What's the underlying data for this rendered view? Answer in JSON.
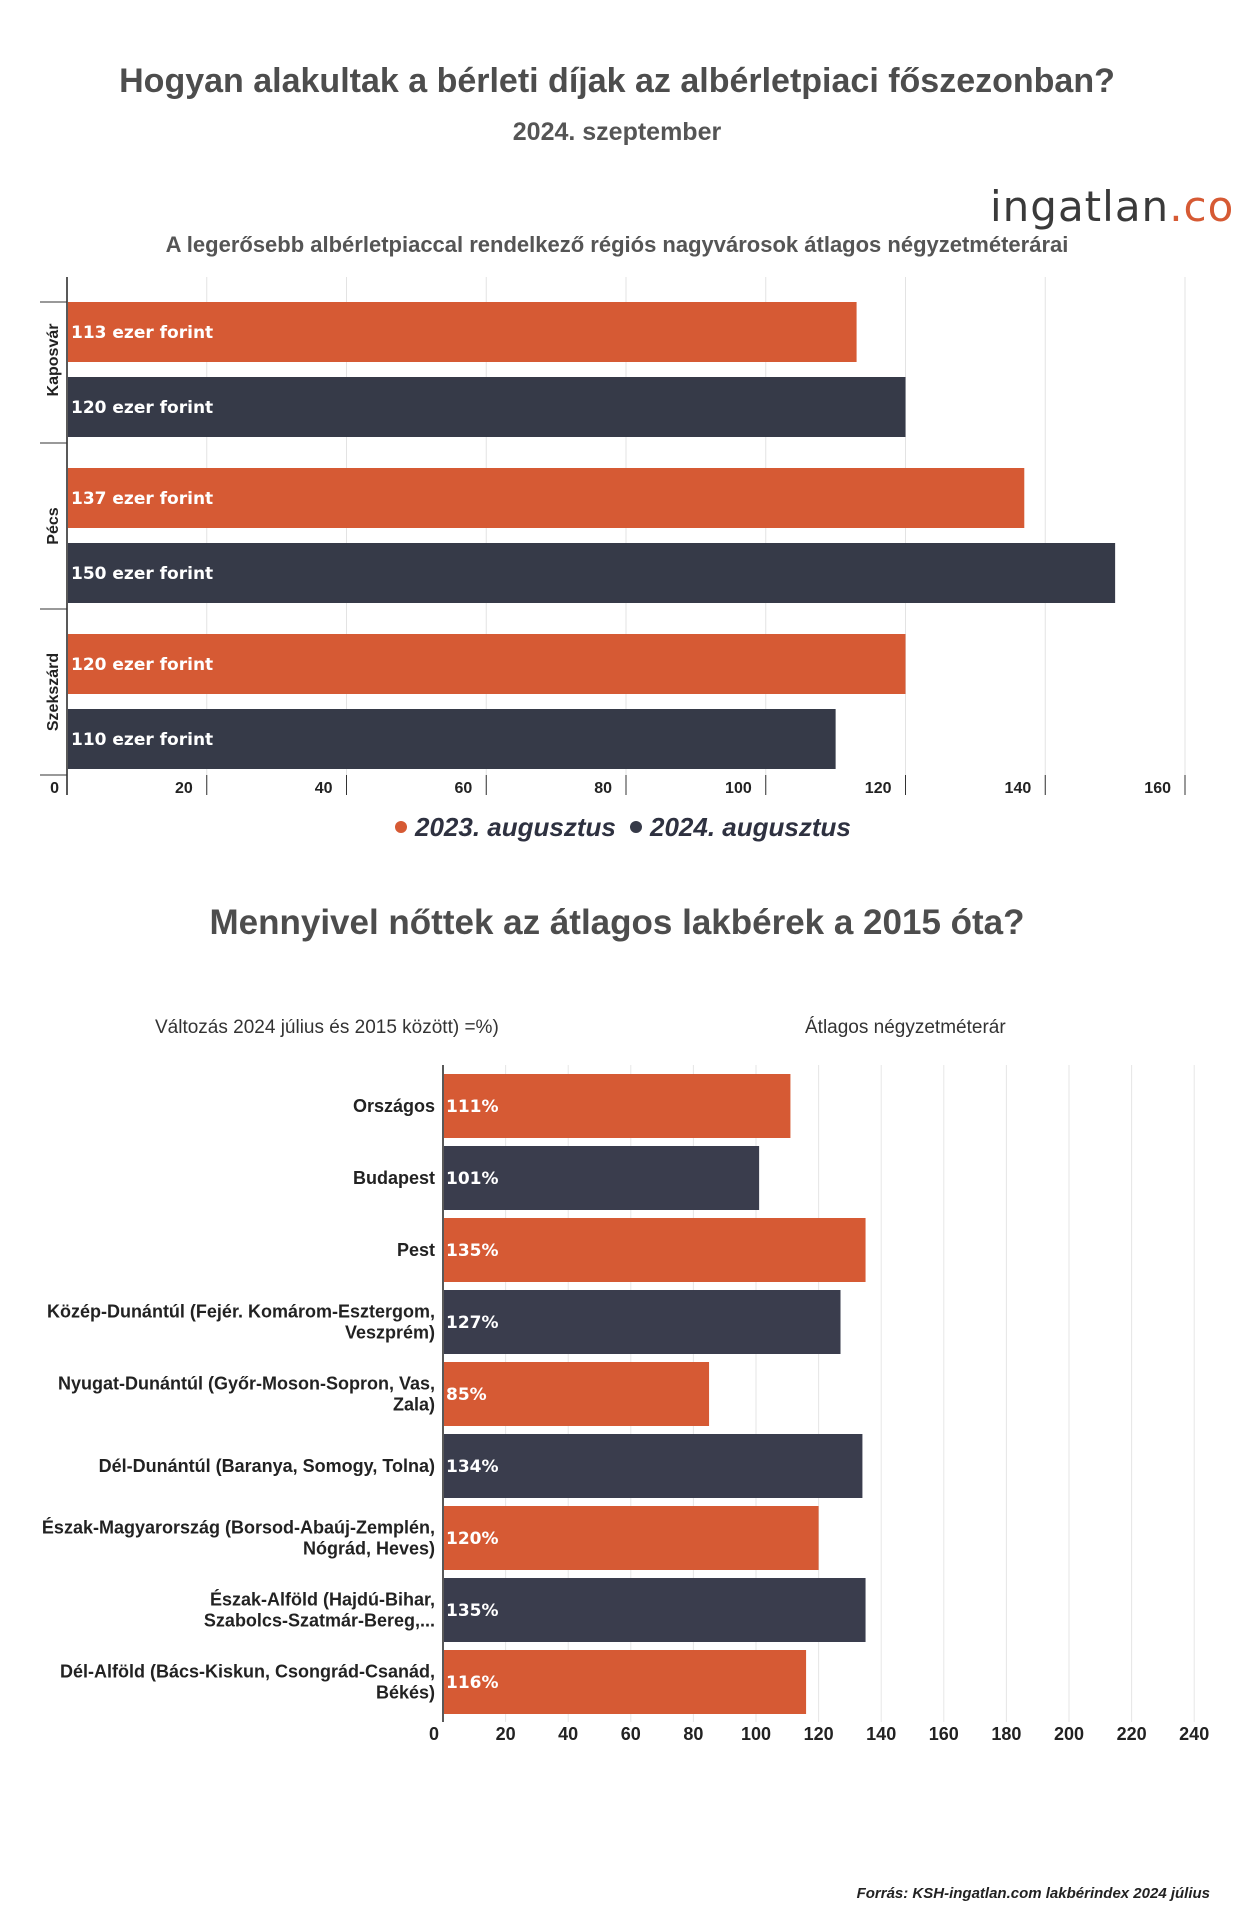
{
  "header": {
    "title": "Hogyan alakultak a bérleti díjak az albérletpiaci főszezonban?",
    "subtitle": "2024. szeptember",
    "logo_name": "ingatlan",
    "logo_tld": ".com"
  },
  "chart1_title": "A legerősebb albérletpiaccal rendelkező régiós nagyvárosok átlagos négyzetméterárai",
  "chart2_title": "Mennyivel nőttek az átlagos lakbérek a 2015 óta?",
  "chart2_left_header": "Változás 2024 július és 2015 között) =%)",
  "chart2_right_header": "Átlagos négyzetméterár",
  "footer": "Forrás: KSH-ingatlan.com lakbérindex 2024 július",
  "colors": {
    "orange": "#d65a34",
    "navy": "#363a48"
  },
  "chart_data": [
    {
      "type": "bar",
      "orientation": "horizontal",
      "title": "A legerősebb albérletpiaccal rendelkező régiós nagyvárosok átlagos négyzetméterárai",
      "categories": [
        "Kaposvár",
        "Pécs",
        "Szekszárd"
      ],
      "series": [
        {
          "name": "2023. augusztus",
          "color": "#d65a34",
          "values": [
            113,
            137,
            120
          ],
          "labels": [
            "113 ezer forint",
            "137 ezer forint",
            "120 ezer forint"
          ]
        },
        {
          "name": "2024. augusztus",
          "color": "#363a48",
          "values": [
            120,
            150,
            110
          ],
          "labels": [
            "120 ezer forint",
            "150 ezer forint",
            "110 ezer forint"
          ]
        }
      ],
      "xlim": [
        0,
        160
      ],
      "xticks": [
        "0",
        "20",
        "40",
        "60",
        "80",
        "100",
        "120",
        "140",
        "160"
      ],
      "grid": true,
      "legend_position": "bottom"
    },
    {
      "type": "bar",
      "orientation": "horizontal",
      "title": "Mennyivel nőttek az átlagos lakbérek a 2015 óta?",
      "categories": [
        [
          "Országos"
        ],
        [
          "Budapest"
        ],
        [
          "Pest"
        ],
        [
          "Közép-Dunántúl (Fejér. Komárom-Esztergom,",
          "Veszprém)"
        ],
        [
          "Nyugat-Dunántúl (Győr-Moson-Sopron, Vas,",
          "Zala)"
        ],
        [
          "Dél-Dunántúl (Baranya, Somogy, Tolna)"
        ],
        [
          "Észak-Magyarország (Borsod-Abaúj-Zemplén,",
          "Nógrád, Heves)"
        ],
        [
          "Észak-Alföld (Hajdú-Bihar,",
          "Szabolcs-Szatmár-Bereg,..."
        ],
        [
          "Dél-Alföld (Bács-Kiskun, Csongrád-Csanád,",
          "Békés)"
        ]
      ],
      "values": [
        111,
        101,
        135,
        127,
        85,
        134,
        120,
        135,
        116
      ],
      "labels": [
        "111%",
        "101%",
        "135%",
        "127%",
        "85%",
        "134%",
        "120%",
        "135%",
        "116%"
      ],
      "colors": [
        "#d65a34",
        "#3a3d4d",
        "#d65a34",
        "#3a3d4d",
        "#d65a34",
        "#3a3d4d",
        "#d65a34",
        "#3a3d4d",
        "#d65a34"
      ],
      "xlim": [
        0,
        240
      ],
      "xticks": [
        "0",
        "20",
        "40",
        "60",
        "80",
        "100",
        "120",
        "140",
        "160",
        "180",
        "200",
        "220",
        "240"
      ],
      "grid": true
    }
  ]
}
